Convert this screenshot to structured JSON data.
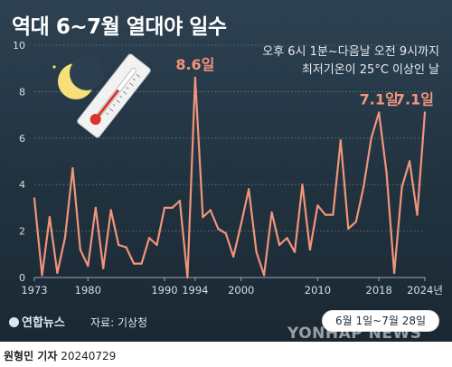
{
  "title": "역대 6~7월 열대야 일수",
  "subtitle_lines": [
    "오후 6시 1분~다음날 오전 9시까지",
    "최저기온이 25°C 이상인 날"
  ],
  "logo_text": "연합뉴스",
  "source": "자료: 기상청",
  "date_range": "6월 1일~7월 28일",
  "watermark": "YONHAP NEWS",
  "credit": {
    "reporter": "원형민 기자",
    "date": "20240729"
  },
  "colors": {
    "line": "#f0957a",
    "label": "#f0957a",
    "grid": "#6c7f8e",
    "axis_text": "#d7dee4",
    "background": "#263746"
  },
  "icons": [
    "moon-icon",
    "thermometer-icon"
  ],
  "chart_data": {
    "type": "line",
    "title": "역대 6~7월 열대야 일수",
    "ylim": [
      0,
      10
    ],
    "yticks": [
      0,
      2,
      4,
      6,
      8,
      10
    ],
    "xtick_labels": [
      "1973",
      "1980",
      "1990",
      "1994",
      "2000",
      "2010",
      "2018",
      "2024년"
    ],
    "xtick_years": [
      1973,
      1980,
      1990,
      1994,
      2000,
      2010,
      2018,
      2024
    ],
    "grid": true,
    "series": [
      {
        "x": [
          1973,
          1974,
          1975,
          1976,
          1977,
          1978,
          1979,
          1980,
          1981,
          1982,
          1983,
          1984,
          1985,
          1986,
          1987,
          1988,
          1989,
          1990,
          1991,
          1992,
          1993,
          1994,
          1995,
          1996,
          1997,
          1998,
          1999,
          2000,
          2001,
          2002,
          2003,
          2004,
          2005,
          2006,
          2007,
          2008,
          2009,
          2010,
          2011,
          2012,
          2013,
          2014,
          2015,
          2016,
          2017,
          2018,
          2019,
          2020,
          2021,
          2022,
          2023,
          2024
        ],
        "y": [
          3.4,
          0.1,
          2.6,
          0.2,
          1.7,
          4.7,
          1.2,
          0.5,
          3.0,
          0.4,
          2.9,
          1.4,
          1.3,
          0.6,
          0.6,
          1.7,
          1.4,
          3.0,
          3.0,
          3.3,
          0.0,
          8.6,
          2.6,
          2.9,
          2.1,
          1.9,
          0.9,
          2.3,
          3.8,
          1.1,
          0.1,
          2.8,
          1.4,
          1.7,
          1.1,
          4.0,
          1.2,
          3.1,
          2.7,
          2.7,
          5.9,
          2.1,
          2.4,
          3.9,
          6.0,
          7.1,
          4.5,
          0.2,
          3.9,
          5.0,
          2.7,
          7.1
        ]
      }
    ],
    "annotations": [
      {
        "year": 1994,
        "value": 8.6,
        "label": "8.6일"
      },
      {
        "year": 2018,
        "value": 7.1,
        "label": "7.1일"
      },
      {
        "year": 2024,
        "value": 7.1,
        "label": "7.1일"
      }
    ]
  }
}
